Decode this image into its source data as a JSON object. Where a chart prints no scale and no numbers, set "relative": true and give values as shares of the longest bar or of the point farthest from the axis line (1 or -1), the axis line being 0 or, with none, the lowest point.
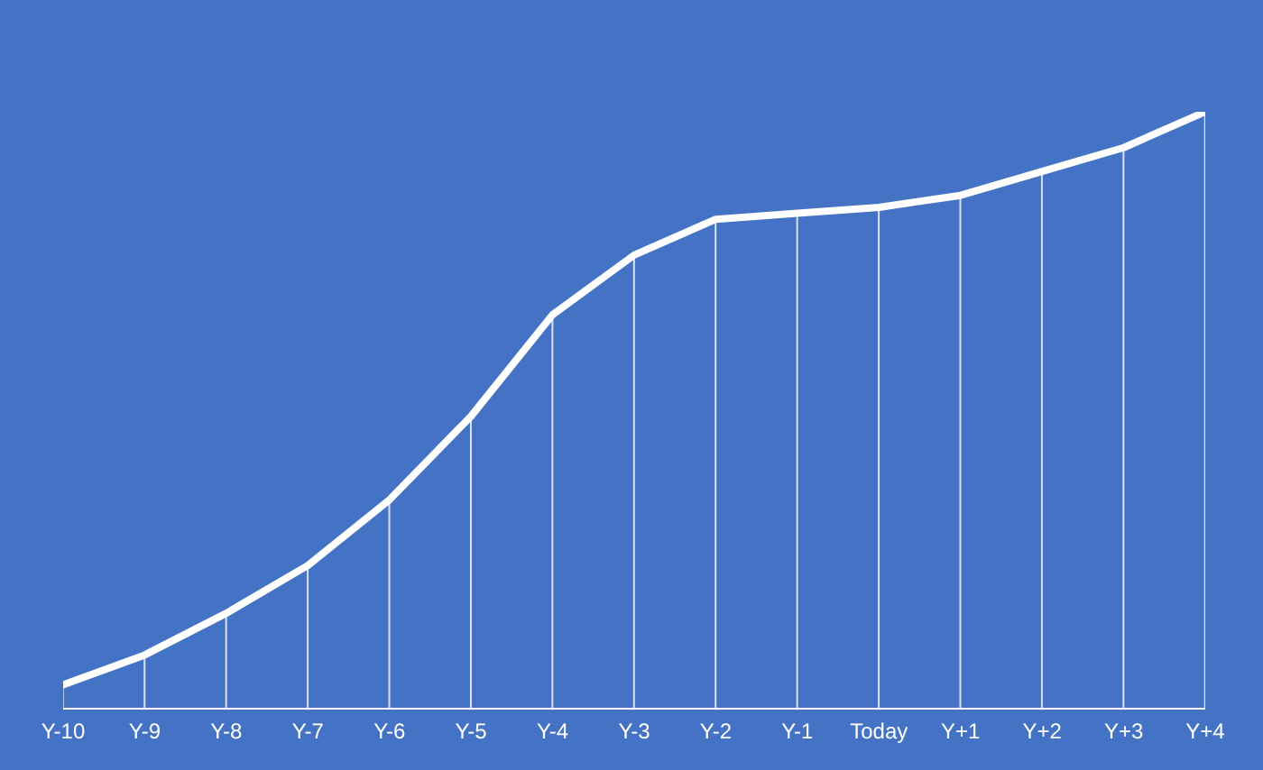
{
  "chart_data": {
    "type": "line",
    "relative": true,
    "categories": [
      "Y-10",
      "Y-9",
      "Y-8",
      "Y-7",
      "Y-6",
      "Y-5",
      "Y-4",
      "Y-3",
      "Y-2",
      "Y-1",
      "Today",
      "Y+1",
      "Y+2",
      "Y+3",
      "Y+4"
    ],
    "series": [
      {
        "type": "bar",
        "color": "#ffffff",
        "values": [
          0.04,
          0.09,
          0.16,
          0.24,
          0.35,
          0.49,
          0.66,
          0.76,
          0.82,
          0.83,
          0.84,
          0.86,
          0.9,
          0.94,
          1
        ]
      },
      {
        "color": "#ffffff",
        "values": [
          0.04,
          0.09,
          0.16,
          0.24,
          0.35,
          0.49,
          0.66,
          0.76,
          0.82,
          0.83,
          0.84,
          0.86,
          0.9,
          0.94,
          1
        ]
      }
    ],
    "marker": "none",
    "line_style": "solid",
    "legend": false
  }
}
